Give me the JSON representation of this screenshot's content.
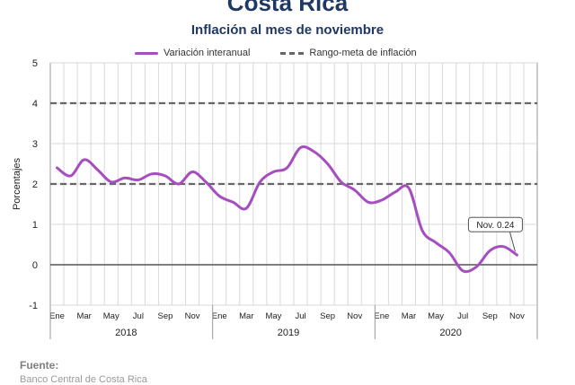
{
  "header": {
    "title": "Costa Rica",
    "subtitle": "Inflación al mes de noviembre"
  },
  "footer": {
    "source_label": "Fuente:",
    "source_text": "Banco Central de Costa Rica"
  },
  "colors": {
    "series": "#a64dbf",
    "target": "#666666",
    "title": "#1f3864"
  },
  "chart_data": {
    "type": "line",
    "title": "Inflación al mes de noviembre",
    "ylabel": "Porcentajes",
    "xlabel": "",
    "ylim": [
      -1,
      5
    ],
    "yticks": [
      -1,
      0,
      1,
      2,
      3,
      4,
      5
    ],
    "grid": true,
    "legend_position": "top",
    "x_tick_labels": [
      "Ene",
      "Mar",
      "May",
      "Jul",
      "Sep",
      "Nov",
      "Ene",
      "Mar",
      "May",
      "Jul",
      "Sep",
      "Nov",
      "Ene",
      "Mar",
      "May",
      "Jul",
      "Sep",
      "Nov"
    ],
    "year_labels": [
      "2018",
      "2019",
      "2020"
    ],
    "series": [
      {
        "name": "Variación interanual",
        "style": "solid",
        "x": [
          "2018-01",
          "2018-02",
          "2018-03",
          "2018-04",
          "2018-05",
          "2018-06",
          "2018-07",
          "2018-08",
          "2018-09",
          "2018-10",
          "2018-11",
          "2018-12",
          "2019-01",
          "2019-02",
          "2019-03",
          "2019-04",
          "2019-05",
          "2019-06",
          "2019-07",
          "2019-08",
          "2019-09",
          "2019-10",
          "2019-11",
          "2019-12",
          "2020-01",
          "2020-02",
          "2020-03",
          "2020-04",
          "2020-05",
          "2020-06",
          "2020-07",
          "2020-08",
          "2020-09",
          "2020-10",
          "2020-11"
        ],
        "values": [
          2.4,
          2.2,
          2.6,
          2.35,
          2.05,
          2.15,
          2.1,
          2.25,
          2.2,
          2.0,
          2.3,
          2.05,
          1.7,
          1.55,
          1.4,
          2.05,
          2.3,
          2.4,
          2.9,
          2.8,
          2.5,
          2.05,
          1.85,
          1.55,
          1.6,
          1.8,
          1.9,
          0.85,
          0.55,
          0.3,
          -0.15,
          -0.05,
          0.35,
          0.45,
          0.24
        ]
      },
      {
        "name": "Rango-meta de inflación",
        "style": "dashed",
        "lines": [
          2,
          4
        ]
      }
    ],
    "annotations": [
      {
        "text": "Nov. 0.24",
        "x": "2020-11",
        "y": 0.24
      }
    ]
  }
}
